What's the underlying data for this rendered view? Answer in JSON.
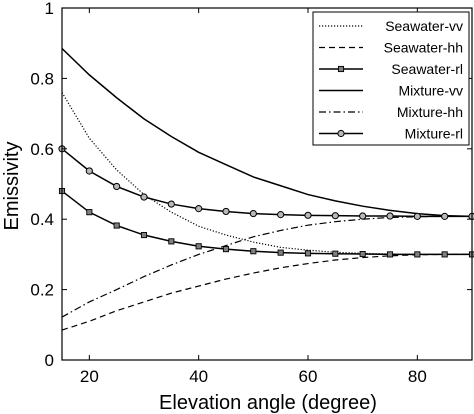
{
  "chart_data": {
    "type": "line",
    "xlabel": "Elevation angle (degree)",
    "ylabel": "Emissivity",
    "xlim": [
      15,
      90
    ],
    "ylim": [
      0,
      1
    ],
    "xticks": [
      20,
      40,
      60,
      80
    ],
    "yticks": [
      0,
      0.2,
      0.4,
      0.6,
      0.8,
      1
    ],
    "ytick_labels": [
      "0",
      "0.2",
      "0.4",
      "0.6",
      "0.8",
      "1"
    ],
    "grid": false,
    "legend_position": "top-right",
    "series": [
      {
        "name": "Seawater-vv",
        "line_style": "dotted",
        "marker": "none",
        "x": [
          15,
          20,
          25,
          30,
          35,
          40,
          45,
          50,
          55,
          60,
          65,
          70,
          75,
          80,
          85,
          90
        ],
        "y": [
          0.76,
          0.63,
          0.54,
          0.47,
          0.42,
          0.38,
          0.355,
          0.335,
          0.32,
          0.312,
          0.306,
          0.303,
          0.301,
          0.3,
          0.3,
          0.3
        ]
      },
      {
        "name": "Seawater-hh",
        "line_style": "dashed",
        "marker": "none",
        "x": [
          15,
          20,
          25,
          30,
          35,
          40,
          45,
          50,
          55,
          60,
          65,
          70,
          75,
          80,
          85,
          90
        ],
        "y": [
          0.085,
          0.11,
          0.14,
          0.165,
          0.19,
          0.21,
          0.23,
          0.247,
          0.262,
          0.274,
          0.284,
          0.291,
          0.296,
          0.299,
          0.3,
          0.3
        ]
      },
      {
        "name": "Seawater-rl",
        "line_style": "solid",
        "marker": "square",
        "x": [
          15,
          20,
          25,
          30,
          35,
          40,
          45,
          50,
          55,
          60,
          65,
          70,
          75,
          80,
          85,
          90
        ],
        "y": [
          0.48,
          0.42,
          0.382,
          0.355,
          0.337,
          0.323,
          0.315,
          0.309,
          0.305,
          0.303,
          0.302,
          0.301,
          0.3,
          0.3,
          0.3,
          0.3
        ]
      },
      {
        "name": "Mixture-vv",
        "line_style": "solid",
        "marker": "none",
        "x": [
          15,
          20,
          25,
          30,
          35,
          40,
          45,
          50,
          55,
          60,
          65,
          70,
          75,
          80,
          85,
          90
        ],
        "y": [
          0.885,
          0.81,
          0.745,
          0.685,
          0.635,
          0.59,
          0.555,
          0.52,
          0.495,
          0.47,
          0.452,
          0.437,
          0.425,
          0.416,
          0.41,
          0.408
        ]
      },
      {
        "name": "Mixture-hh",
        "line_style": "dash-dot",
        "marker": "none",
        "x": [
          15,
          20,
          25,
          30,
          35,
          40,
          45,
          50,
          55,
          60,
          65,
          70,
          75,
          80,
          85,
          90
        ],
        "y": [
          0.122,
          0.165,
          0.2,
          0.237,
          0.27,
          0.3,
          0.325,
          0.35,
          0.368,
          0.383,
          0.393,
          0.4,
          0.405,
          0.407,
          0.408,
          0.408
        ]
      },
      {
        "name": "Mixture-rl",
        "line_style": "solid",
        "marker": "circle",
        "x": [
          15,
          20,
          25,
          30,
          35,
          40,
          45,
          50,
          55,
          60,
          65,
          70,
          75,
          80,
          85,
          90
        ],
        "y": [
          0.6,
          0.537,
          0.493,
          0.463,
          0.443,
          0.43,
          0.422,
          0.416,
          0.413,
          0.411,
          0.41,
          0.409,
          0.409,
          0.408,
          0.408,
          0.408
        ]
      }
    ]
  }
}
